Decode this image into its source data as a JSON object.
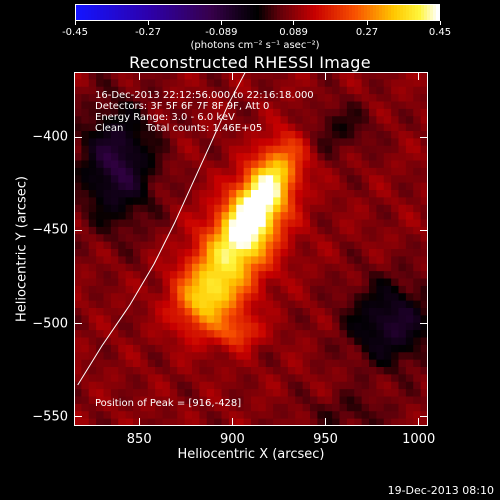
{
  "chart_data": {
    "type": "heatmap",
    "title": "Reconstructed RHESSI Image",
    "xlabel": "Heliocentric X (arcsec)",
    "ylabel": "Heliocentric Y (arcsec)",
    "xlim": [
      815,
      1005
    ],
    "ylim": [
      -555,
      -365
    ],
    "x_ticks": [
      "850",
      "900",
      "950",
      "1000"
    ],
    "x_tick_values": [
      850,
      900,
      950,
      1000
    ],
    "y_ticks": [
      "-400",
      "-450",
      "-500",
      "-550"
    ],
    "y_tick_values": [
      -400,
      -450,
      -500,
      -550
    ],
    "colorbar": {
      "range": [
        -0.45,
        0.45
      ],
      "tick_labels": [
        "-0.45",
        "-0.27",
        "-0.089",
        "0.089",
        "0.27",
        "0.45"
      ],
      "tick_values": [
        -0.45,
        -0.27,
        -0.089,
        0.089,
        0.27,
        0.45
      ],
      "units": "(photons cm⁻² s⁻¹ asec⁻²)"
    },
    "annotations": {
      "time_range": "16-Dec-2013 22:12:56.000 to 22:16:18.000",
      "detectors": "Detectors: 3F 5F 6F 7F 8F 9F, Att 0",
      "energy": "Energy Range: 3.0 - 6.0 keV",
      "clean": "Clean",
      "total_counts": "Total counts: 1.46E+05",
      "peak": "Position of Peak = [916,-428]"
    },
    "peak": [
      916,
      -428
    ],
    "peak_value": 0.45,
    "sources": [
      {
        "x": 916,
        "y": -432,
        "sx": 9,
        "sy": 22,
        "angle": 28,
        "amp": 0.34
      },
      {
        "x": 903,
        "y": -458,
        "sx": 14,
        "sy": 22,
        "angle": 30,
        "amp": 0.23
      },
      {
        "x": 886,
        "y": -487,
        "sx": 12,
        "sy": 13,
        "angle": 20,
        "amp": 0.22
      },
      {
        "x": 904,
        "y": -505,
        "sx": 8,
        "sy": 6,
        "angle": 0,
        "amp": 0.12
      }
    ],
    "negative_regions": [
      {
        "x": 838,
        "y": -415,
        "sx": 14,
        "sy": 22,
        "amp": 0.17
      },
      {
        "x": 985,
        "y": -500,
        "sx": 16,
        "sy": 16,
        "amp": 0.15
      },
      {
        "x": 955,
        "y": -395,
        "sx": 14,
        "sy": 10,
        "amp": 0.07
      },
      {
        "x": 962,
        "y": -548,
        "sx": 18,
        "sy": 8,
        "amp": 0.05
      }
    ],
    "background": 0.085,
    "limb_curve": [
      [
        817,
        -533
      ],
      [
        830,
        -512
      ],
      [
        845,
        -490
      ],
      [
        858,
        -468
      ],
      [
        869,
        -446
      ],
      [
        879,
        -424
      ],
      [
        889,
        -402
      ],
      [
        898,
        -382
      ],
      [
        907,
        -365
      ]
    ],
    "grid": false,
    "legend": "none"
  },
  "footer": {
    "timestamp": "19-Dec-2013 08:10"
  }
}
